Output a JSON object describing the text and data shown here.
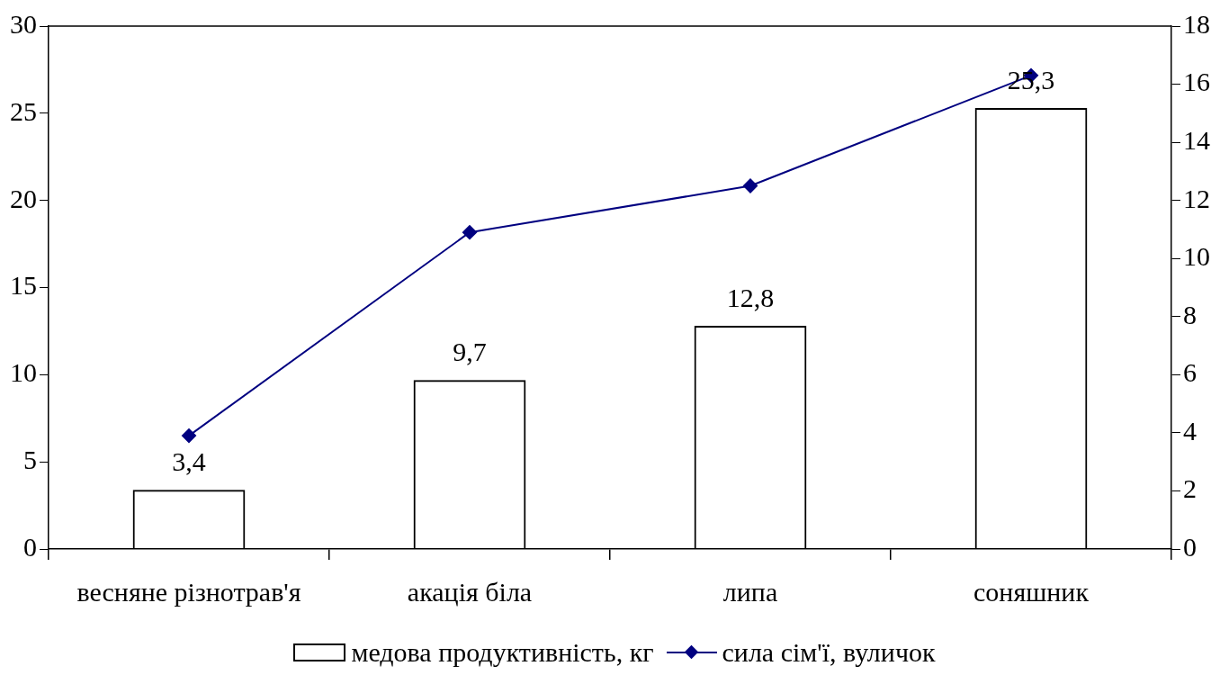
{
  "chart_data": {
    "type": "bar",
    "categories": [
      "весняне різнотрав'я",
      "акація біла",
      "липа",
      "соняшник"
    ],
    "series": [
      {
        "name": "медова продуктивність, кг",
        "color": "#000000",
        "values": [
          3.4,
          9.7,
          12.8,
          25.3
        ],
        "value_labels": [
          "3,4",
          "9,7",
          "12,8",
          "25,3"
        ]
      },
      {
        "name": "сила сім'ї, вуличок",
        "type": "line",
        "axis": "y2",
        "color": "#000080",
        "values": [
          3.9,
          10.9,
          12.5,
          16.3
        ],
        "marker": "diamond"
      }
    ],
    "ylim": [
      0,
      30
    ],
    "yticks": [
      0,
      5,
      10,
      15,
      20,
      25,
      30
    ],
    "y2lim": [
      0,
      18
    ],
    "y2ticks": [
      0,
      2,
      4,
      6,
      8,
      10,
      12,
      14,
      16,
      18
    ],
    "grid": false,
    "legend": "bottom"
  }
}
